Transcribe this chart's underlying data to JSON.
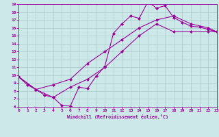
{
  "xlabel": "Windchill (Refroidissement éolien,°C)",
  "bg_color": "#cce8e8",
  "line_color": "#990099",
  "grid_color": "#aacccc",
  "xmin": 0,
  "xmax": 23,
  "ymin": 6,
  "ymax": 19,
  "yticks": [
    6,
    7,
    8,
    9,
    10,
    11,
    12,
    13,
    14,
    15,
    16,
    17,
    18,
    19
  ],
  "xticks": [
    0,
    1,
    2,
    3,
    4,
    5,
    6,
    7,
    8,
    9,
    10,
    11,
    12,
    13,
    14,
    15,
    16,
    17,
    18,
    19,
    20,
    21,
    22,
    23
  ],
  "curves": [
    {
      "x": [
        0,
        1,
        2,
        3,
        4,
        5,
        6,
        7,
        8,
        9,
        10,
        11,
        12,
        13,
        14,
        15,
        16,
        17,
        18,
        19,
        20,
        21,
        22,
        23
      ],
      "y": [
        9.8,
        8.8,
        8.2,
        7.5,
        7.2,
        6.2,
        6.1,
        8.5,
        8.3,
        9.9,
        11.1,
        15.3,
        16.5,
        17.5,
        17.2,
        19.3,
        18.5,
        18.8,
        17.3,
        16.7,
        16.2,
        16.1,
        15.8,
        15.5
      ]
    },
    {
      "x": [
        0,
        2,
        4,
        6,
        8,
        10,
        12,
        14,
        16,
        18,
        20,
        22,
        23
      ],
      "y": [
        9.8,
        8.2,
        8.8,
        9.5,
        11.5,
        13.0,
        14.5,
        16.0,
        17.0,
        17.5,
        16.5,
        16.0,
        15.5
      ]
    },
    {
      "x": [
        0,
        2,
        4,
        6,
        8,
        10,
        12,
        14,
        16,
        18,
        20,
        22,
        23
      ],
      "y": [
        9.8,
        8.2,
        7.2,
        8.5,
        9.5,
        11.0,
        13.0,
        15.0,
        16.5,
        15.5,
        15.5,
        15.5,
        15.5
      ]
    }
  ]
}
